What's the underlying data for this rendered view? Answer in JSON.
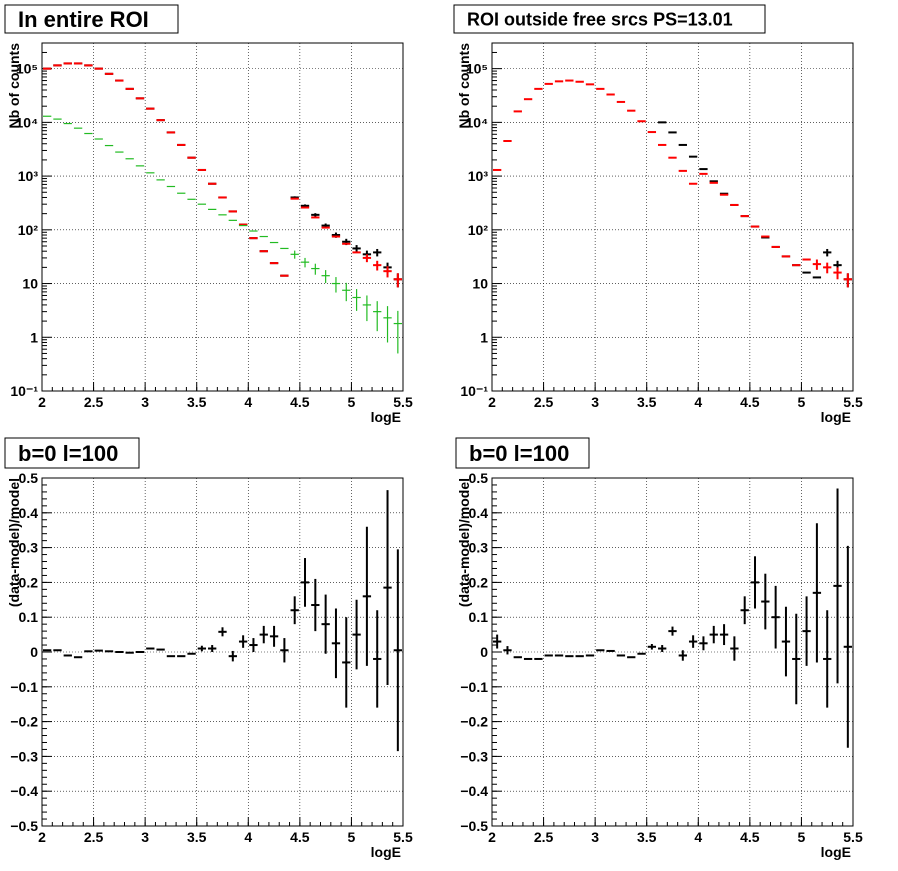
{
  "chart_data": [
    {
      "type": "scatter",
      "title": "In entire ROI",
      "xlabel": "logE",
      "ylabel": "Nb of counts",
      "xlim": [
        2,
        5.5
      ],
      "ylim": [
        0.1,
        300000
      ],
      "yscale": "log",
      "grid": true,
      "x_ticks": [
        "2",
        "2.5",
        "3",
        "3.5",
        "4",
        "4.5",
        "5",
        "5.5"
      ],
      "y_ticks": [
        "10⁻¹",
        "1",
        "10",
        "10²",
        "10³",
        "10⁴",
        "10⁵"
      ],
      "y_tick_values": [
        0.1,
        1,
        10,
        100,
        1000,
        10000,
        100000
      ],
      "series": [
        {
          "color": "#000000",
          "x": [
            2.05,
            2.15,
            2.25,
            2.35,
            2.45,
            2.55,
            2.65,
            2.75,
            2.85,
            2.95,
            3.05,
            3.15,
            3.25,
            3.35,
            3.45,
            3.55,
            3.65,
            3.75,
            3.85,
            3.95,
            4.05,
            4.15,
            4.25,
            4.35,
            4.45,
            4.55,
            4.65,
            4.75,
            4.85,
            4.95,
            5.05,
            5.15,
            5.25,
            5.35,
            5.45
          ],
          "y": [
            100000,
            115000,
            125000,
            125000,
            115000,
            100000,
            80000,
            60000,
            42000,
            28000,
            18000,
            11000,
            6500,
            3800,
            2200,
            1300,
            720,
            400,
            220,
            125,
            70,
            40,
            24,
            14,
            400,
            280,
            190,
            120,
            80,
            60,
            45,
            35,
            38,
            20,
            12
          ],
          "yerr": [
            0,
            0,
            0,
            0,
            0,
            0,
            0,
            0,
            0,
            0,
            0,
            0,
            0,
            0,
            0,
            0,
            0,
            0,
            0,
            0,
            0,
            0,
            0,
            0,
            20,
            17,
            14,
            11,
            9,
            8,
            7,
            6,
            6,
            4.5,
            3.5
          ]
        },
        {
          "color": "#ff0000",
          "x": [
            2.05,
            2.15,
            2.25,
            2.35,
            2.45,
            2.55,
            2.65,
            2.75,
            2.85,
            2.95,
            3.05,
            3.15,
            3.25,
            3.35,
            3.45,
            3.55,
            3.65,
            3.75,
            3.85,
            3.95,
            4.05,
            4.15,
            4.25,
            4.35,
            4.45,
            4.55,
            4.65,
            4.75,
            4.85,
            4.95,
            5.05,
            5.15,
            5.25,
            5.35,
            5.45
          ],
          "y": [
            100000,
            115000,
            125000,
            125000,
            115000,
            100000,
            80000,
            60000,
            42000,
            28000,
            18000,
            11000,
            6500,
            3800,
            2200,
            1300,
            720,
            400,
            220,
            125,
            70,
            40,
            24,
            14,
            380,
            260,
            170,
            110,
            75,
            55,
            38,
            30,
            22,
            17,
            12
          ],
          "yerr": [
            0,
            0,
            0,
            0,
            0,
            0,
            0,
            0,
            0,
            0,
            0,
            0,
            0,
            0,
            0,
            0,
            0,
            0,
            0,
            0,
            0,
            0,
            0,
            0,
            0,
            0,
            0,
            0,
            0,
            0,
            0,
            5,
            4.5,
            4,
            3.5
          ]
        },
        {
          "color": "#22bb22",
          "x": [
            2.05,
            2.15,
            2.25,
            2.35,
            2.45,
            2.55,
            2.65,
            2.75,
            2.85,
            2.95,
            3.05,
            3.15,
            3.25,
            3.35,
            3.45,
            3.55,
            3.65,
            3.75,
            3.85,
            3.95,
            4.05,
            4.15,
            4.25,
            4.35,
            4.45,
            4.55,
            4.65,
            4.75,
            4.85,
            4.95,
            5.05,
            5.15,
            5.25,
            5.35,
            5.45
          ],
          "y": [
            13000,
            11500,
            9500,
            7800,
            6200,
            4900,
            3700,
            2800,
            2100,
            1550,
            1150,
            850,
            640,
            480,
            370,
            300,
            240,
            190,
            150,
            120,
            95,
            75,
            58,
            45,
            35,
            25,
            19,
            14,
            10,
            7.5,
            5.5,
            4,
            3,
            2.3,
            1.8
          ],
          "yerr": [
            0,
            0,
            0,
            0,
            0,
            0,
            0,
            0,
            0,
            0,
            0,
            0,
            0,
            0,
            0,
            0,
            0,
            0,
            0,
            0,
            0,
            0,
            0,
            0,
            6,
            5,
            4.4,
            3.8,
            3.2,
            2.8,
            2.4,
            2,
            1.7,
            1.5,
            1.3
          ]
        }
      ]
    },
    {
      "type": "scatter",
      "title": "ROI outside free srcs PS=13.01",
      "xlabel": "logE",
      "ylabel": "Nb of counts",
      "xlim": [
        2,
        5.5
      ],
      "ylim": [
        0.1,
        300000
      ],
      "yscale": "log",
      "grid": true,
      "x_ticks": [
        "2",
        "2.5",
        "3",
        "3.5",
        "4",
        "4.5",
        "5",
        "5.5"
      ],
      "y_ticks": [
        "10⁻¹",
        "1",
        "10",
        "10²",
        "10³",
        "10⁴",
        "10⁵"
      ],
      "y_tick_values": [
        0.1,
        1,
        10,
        100,
        1000,
        10000,
        100000
      ],
      "series": [
        {
          "color": "#000000",
          "x": [
            3.65,
            3.75,
            3.85,
            3.95,
            4.05,
            4.15,
            4.25,
            4.35,
            4.45,
            4.55,
            4.65,
            4.75,
            4.85,
            4.95,
            5.05,
            5.15,
            5.25,
            5.35,
            5.45
          ],
          "y": [
            10000,
            6500,
            3800,
            2300,
            1350,
            800,
            470,
            290,
            180,
            115,
            72,
            48,
            32,
            22,
            16,
            13,
            38,
            22,
            12
          ],
          "yerr": [
            0,
            0,
            0,
            0,
            0,
            0,
            0,
            0,
            0,
            0,
            0,
            0,
            0,
            0,
            0,
            0,
            6,
            4.5,
            3.5
          ]
        },
        {
          "color": "#ff0000",
          "x": [
            2.05,
            2.15,
            2.25,
            2.35,
            2.45,
            2.55,
            2.65,
            2.75,
            2.85,
            2.95,
            3.05,
            3.15,
            3.25,
            3.35,
            3.45,
            3.55,
            3.65,
            3.75,
            3.85,
            3.95,
            4.05,
            4.15,
            4.25,
            4.35,
            4.45,
            4.55,
            4.65,
            4.75,
            4.85,
            4.95,
            5.05,
            5.15,
            5.25,
            5.35,
            5.45
          ],
          "y": [
            1300,
            4500,
            16000,
            27000,
            42000,
            52000,
            58000,
            60000,
            57000,
            51000,
            42000,
            33000,
            24000,
            16500,
            10500,
            6600,
            3800,
            2200,
            1250,
            720,
            1100,
            750,
            450,
            290,
            180,
            115,
            75,
            48,
            32,
            22,
            28,
            23,
            20,
            16,
            12
          ],
          "yerr": [
            0,
            0,
            0,
            0,
            0,
            0,
            0,
            0,
            0,
            0,
            0,
            0,
            0,
            0,
            0,
            0,
            0,
            0,
            0,
            0,
            0,
            0,
            0,
            0,
            0,
            0,
            0,
            0,
            0,
            0,
            0,
            5,
            4.5,
            4,
            3.5
          ]
        }
      ]
    },
    {
      "type": "scatter",
      "title": "b=0 l=100",
      "xlabel": "logE",
      "ylabel": "(data-model)/model",
      "xlim": [
        2,
        5.5
      ],
      "ylim": [
        -0.5,
        0.5
      ],
      "grid": true,
      "x_ticks": [
        "2",
        "2.5",
        "3",
        "3.5",
        "4",
        "4.5",
        "5",
        "5.5"
      ],
      "y_ticks": [
        "−0.5",
        "−0.4",
        "−0.3",
        "−0.2",
        "−0.1",
        "0",
        "0.1",
        "0.2",
        "0.3",
        "0.4",
        "0.5"
      ],
      "y_tick_values": [
        -0.5,
        -0.4,
        -0.3,
        -0.2,
        -0.1,
        0,
        0.1,
        0.2,
        0.3,
        0.4,
        0.5
      ],
      "series": [
        {
          "color": "#000000",
          "x": [
            2.05,
            2.15,
            2.25,
            2.35,
            2.45,
            2.55,
            2.65,
            2.75,
            2.85,
            2.95,
            3.05,
            3.15,
            3.25,
            3.35,
            3.45,
            3.55,
            3.65,
            3.75,
            3.85,
            3.95,
            4.05,
            4.15,
            4.25,
            4.35,
            4.45,
            4.55,
            4.65,
            4.75,
            4.85,
            4.95,
            5.05,
            5.15,
            5.25,
            5.35,
            5.45
          ],
          "y": [
            0.005,
            0.005,
            -0.01,
            -0.015,
            0.002,
            0.004,
            0.002,
            0,
            -0.002,
            0,
            0.01,
            0.007,
            -0.012,
            -0.012,
            -0.005,
            0.01,
            0.01,
            0.058,
            -0.012,
            0.03,
            0.02,
            0.05,
            0.045,
            0.005,
            0.12,
            0.2,
            0.135,
            0.08,
            0.025,
            -0.03,
            0.05,
            0.16,
            -0.02,
            0.185,
            0.005
          ],
          "yerr": [
            0,
            0,
            0,
            0,
            0,
            0,
            0,
            0,
            0,
            0,
            0,
            0,
            0,
            0,
            0,
            0.008,
            0.01,
            0.013,
            0.015,
            0.018,
            0.02,
            0.025,
            0.03,
            0.035,
            0.04,
            0.07,
            0.075,
            0.085,
            0.1,
            0.13,
            0.1,
            0.2,
            0.14,
            0.28,
            0.29
          ]
        }
      ]
    },
    {
      "type": "scatter",
      "title": "b=0 l=100",
      "xlabel": "logE",
      "ylabel": "(data-model)/model",
      "xlim": [
        2,
        5.5
      ],
      "ylim": [
        -0.5,
        0.5
      ],
      "grid": true,
      "x_ticks": [
        "2",
        "2.5",
        "3",
        "3.5",
        "4",
        "4.5",
        "5",
        "5.5"
      ],
      "y_ticks": [
        "−0.5",
        "−0.4",
        "−0.3",
        "−0.2",
        "−0.1",
        "0",
        "0.1",
        "0.2",
        "0.3",
        "0.4",
        "0.5"
      ],
      "y_tick_values": [
        -0.5,
        -0.4,
        -0.3,
        -0.2,
        -0.1,
        0,
        0.1,
        0.2,
        0.3,
        0.4,
        0.5
      ],
      "series": [
        {
          "color": "#000000",
          "x": [
            2.05,
            2.15,
            2.25,
            2.35,
            2.45,
            2.55,
            2.65,
            2.75,
            2.85,
            2.95,
            3.05,
            3.15,
            3.25,
            3.35,
            3.45,
            3.55,
            3.65,
            3.75,
            3.85,
            3.95,
            4.05,
            4.15,
            4.25,
            4.35,
            4.45,
            4.55,
            4.65,
            4.75,
            4.85,
            4.95,
            5.05,
            5.15,
            5.25,
            5.35,
            5.45
          ],
          "y": [
            0.03,
            0.005,
            -0.015,
            -0.02,
            -0.02,
            -0.01,
            -0.01,
            -0.012,
            -0.012,
            -0.01,
            0.005,
            0.003,
            -0.01,
            -0.015,
            -0.005,
            0.015,
            0.01,
            0.06,
            -0.01,
            0.03,
            0.025,
            0.05,
            0.05,
            0.01,
            0.12,
            0.2,
            0.145,
            0.1,
            0.03,
            -0.02,
            0.06,
            0.17,
            -0.02,
            0.19,
            0.015
          ],
          "yerr": [
            0.02,
            0.012,
            0,
            0,
            0,
            0,
            0,
            0,
            0,
            0,
            0,
            0,
            0,
            0,
            0,
            0.008,
            0.01,
            0.013,
            0.015,
            0.018,
            0.02,
            0.025,
            0.03,
            0.035,
            0.04,
            0.075,
            0.08,
            0.09,
            0.1,
            0.13,
            0.1,
            0.2,
            0.14,
            0.28,
            0.29
          ]
        }
      ]
    }
  ]
}
